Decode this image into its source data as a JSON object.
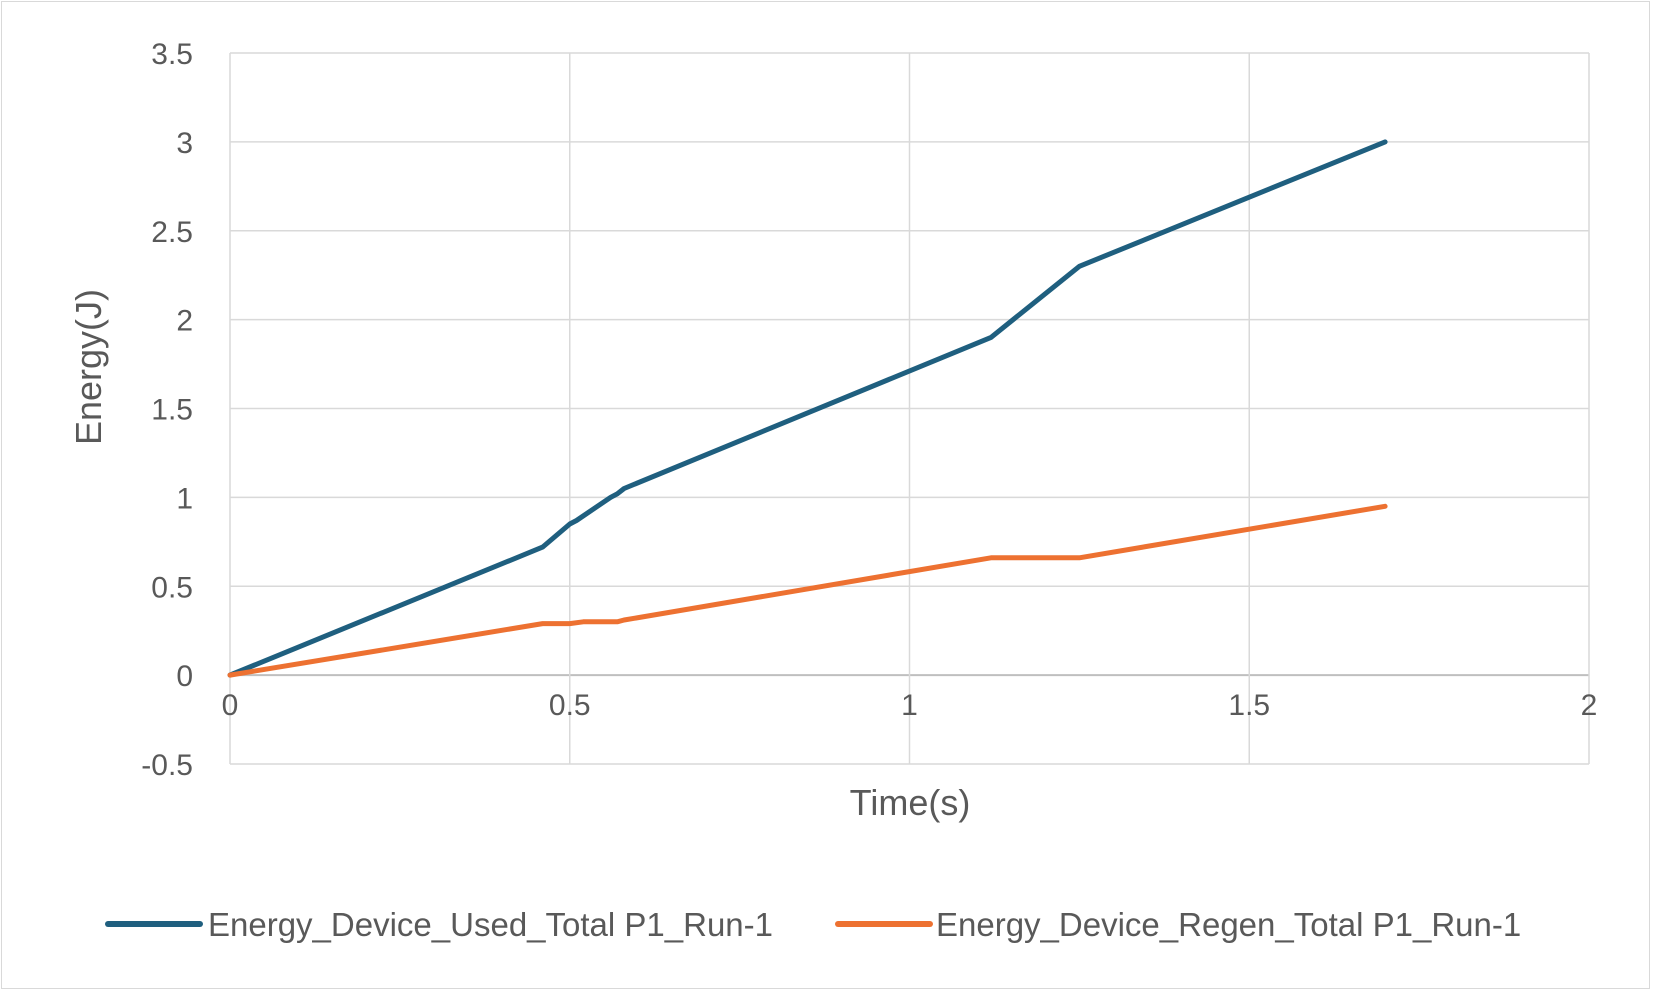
{
  "chart_data": {
    "type": "line",
    "title": "",
    "xlabel": "Time(s)",
    "ylabel": "Energy(J)",
    "xlim": [
      0,
      2
    ],
    "ylim": [
      -0.5,
      3.5
    ],
    "x_ticks": [
      "0",
      "0.5",
      "1",
      "1.5",
      "2"
    ],
    "y_ticks": [
      "-0.5",
      "0",
      "0.5",
      "1",
      "1.5",
      "2",
      "2.5",
      "3",
      "3.5"
    ],
    "grid": true,
    "legend_position": "bottom",
    "series": [
      {
        "name": "Energy_Device_Used_Total P1_Run-1",
        "color": "#1f5f7f",
        "x": [
          0,
          0.46,
          0.5,
          0.51,
          0.56,
          0.57,
          0.58,
          1.12,
          1.25,
          1.7
        ],
        "y": [
          0,
          0.72,
          0.85,
          0.87,
          1.0,
          1.02,
          1.05,
          1.9,
          2.3,
          3.0
        ]
      },
      {
        "name": "Energy_Device_Regen_Total P1_Run-1",
        "color": "#ed7131",
        "x": [
          0,
          0.46,
          0.5,
          0.52,
          0.57,
          0.58,
          1.12,
          1.25,
          1.7
        ],
        "y": [
          0,
          0.29,
          0.29,
          0.3,
          0.3,
          0.31,
          0.66,
          0.66,
          0.95
        ]
      }
    ]
  }
}
